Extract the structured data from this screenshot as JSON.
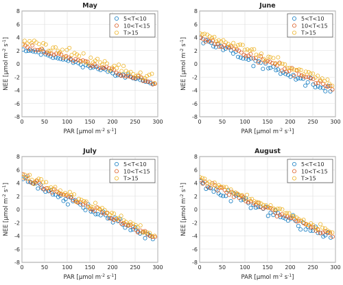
{
  "chart_data": [
    {
      "type": "scatter",
      "title": "May",
      "xlabel_prefix": "PAR [",
      "xlabel_mu": "μ",
      "xlabel_unit": "mol m",
      "xlabel_exp": "-2",
      "xlabel_s": " s",
      "xlabel_exp2": "-1",
      "xlabel_end": "]",
      "ylabel_prefix": "NEE [",
      "ylabel_mu": "μ",
      "ylabel_unit": "mol m",
      "ylabel_exp": "-2",
      "ylabel_s": " s",
      "ylabel_exp2": "-1",
      "ylabel_end": "]",
      "xlim": [
        0,
        300
      ],
      "ylim": [
        -8,
        8
      ],
      "xticks": [
        0,
        50,
        100,
        150,
        200,
        250,
        300
      ],
      "yticks": [
        -8,
        -6,
        -4,
        -2,
        0,
        2,
        4,
        6,
        8
      ],
      "grid": true,
      "legend_position": "top-right",
      "series": [
        {
          "name": "5<T<10",
          "color": "#0072BD",
          "a": 2.4,
          "b": -0.0185,
          "x0": 3,
          "dx": 5.5,
          "count": 53,
          "noise": 0.28,
          "seed": 11
        },
        {
          "name": "10<T<15",
          "color": "#D95319",
          "a": 2.9,
          "b": -0.0195,
          "x0": 2,
          "dx": 5.3,
          "count": 56,
          "noise": 0.33,
          "seed": 23
        },
        {
          "name": "T>15",
          "color": "#EDB120",
          "a": 3.7,
          "b": -0.0205,
          "x0": 1,
          "dx": 5.2,
          "count": 57,
          "noise": 0.55,
          "seed": 37
        }
      ]
    },
    {
      "type": "scatter",
      "title": "June",
      "xlabel_prefix": "PAR [",
      "xlabel_mu": "μ",
      "xlabel_unit": "mol m",
      "xlabel_exp": "-2",
      "xlabel_s": " s",
      "xlabel_exp2": "-1",
      "xlabel_end": "]",
      "ylabel_prefix": "NEE [",
      "ylabel_mu": "μ",
      "ylabel_unit": "mol m",
      "ylabel_exp": "-2",
      "ylabel_s": " s",
      "ylabel_exp2": "-1",
      "ylabel_end": "]",
      "xlim": [
        0,
        300
      ],
      "ylim": [
        -8,
        8
      ],
      "xticks": [
        0,
        50,
        100,
        150,
        200,
        250,
        300
      ],
      "yticks": [
        -8,
        -6,
        -4,
        -2,
        0,
        2,
        4,
        6,
        8
      ],
      "grid": true,
      "legend_position": "top-right",
      "series": [
        {
          "name": "5<T<10",
          "color": "#0072BD",
          "a": 3.6,
          "b": -0.0265,
          "x0": 3,
          "dx": 5.5,
          "count": 53,
          "noise": 0.45,
          "seed": 41
        },
        {
          "name": "10<T<15",
          "color": "#D95319",
          "a": 4.2,
          "b": -0.0265,
          "x0": 2,
          "dx": 5.3,
          "count": 56,
          "noise": 0.35,
          "seed": 53
        },
        {
          "name": "T>15",
          "color": "#EDB120",
          "a": 5.0,
          "b": -0.0275,
          "x0": 1,
          "dx": 5.2,
          "count": 57,
          "noise": 0.4,
          "seed": 67
        }
      ]
    },
    {
      "type": "scatter",
      "title": "July",
      "xlabel_prefix": "PAR [",
      "xlabel_mu": "μ",
      "xlabel_unit": "mol m",
      "xlabel_exp": "-2",
      "xlabel_s": " s",
      "xlabel_exp2": "-1",
      "xlabel_end": "]",
      "ylabel_prefix": "NEE [",
      "ylabel_mu": "μ",
      "ylabel_unit": "mol m",
      "ylabel_exp": "-2",
      "ylabel_s": " s",
      "ylabel_exp2": "-1",
      "ylabel_end": "]",
      "xlim": [
        0,
        300
      ],
      "ylim": [
        -8,
        8
      ],
      "xticks": [
        0,
        50,
        100,
        150,
        200,
        250,
        300
      ],
      "yticks": [
        -8,
        -6,
        -4,
        -2,
        0,
        2,
        4,
        6,
        8
      ],
      "grid": true,
      "legend_position": "top-right",
      "series": [
        {
          "name": "5<T<10",
          "color": "#0072BD",
          "a": 4.6,
          "b": -0.031,
          "x0": 3,
          "dx": 5.5,
          "count": 53,
          "noise": 0.5,
          "seed": 71
        },
        {
          "name": "10<T<15",
          "color": "#D95319",
          "a": 5.0,
          "b": -0.031,
          "x0": 2,
          "dx": 5.3,
          "count": 56,
          "noise": 0.35,
          "seed": 83
        },
        {
          "name": "T>15",
          "color": "#EDB120",
          "a": 5.6,
          "b": -0.0325,
          "x0": 1,
          "dx": 5.2,
          "count": 57,
          "noise": 0.4,
          "seed": 97
        }
      ]
    },
    {
      "type": "scatter",
      "title": "August",
      "xlabel_prefix": "PAR [",
      "xlabel_mu": "μ",
      "xlabel_unit": "mol m",
      "xlabel_exp": "-2",
      "xlabel_s": " s",
      "xlabel_exp2": "-1",
      "xlabel_end": "]",
      "ylabel_prefix": "NEE [",
      "ylabel_mu": "μ",
      "ylabel_unit": "mol m",
      "ylabel_exp": "-2",
      "ylabel_s": " s",
      "ylabel_exp2": "-1",
      "ylabel_end": "]",
      "xlim": [
        0,
        300
      ],
      "ylim": [
        -8,
        8
      ],
      "xticks": [
        0,
        50,
        100,
        150,
        200,
        250,
        300
      ],
      "yticks": [
        -8,
        -6,
        -4,
        -2,
        0,
        2,
        4,
        6,
        8
      ],
      "grid": true,
      "legend_position": "top-right",
      "series": [
        {
          "name": "5<T<10",
          "color": "#0072BD",
          "a": 4.0,
          "b": -0.028,
          "x0": 3,
          "dx": 5.5,
          "count": 53,
          "noise": 0.55,
          "seed": 101
        },
        {
          "name": "10<T<15",
          "color": "#D95319",
          "a": 4.4,
          "b": -0.0285,
          "x0": 2,
          "dx": 5.3,
          "count": 56,
          "noise": 0.35,
          "seed": 113
        },
        {
          "name": "T>15",
          "color": "#EDB120",
          "a": 4.9,
          "b": -0.029,
          "x0": 1,
          "dx": 5.2,
          "count": 57,
          "noise": 0.35,
          "seed": 127
        }
      ]
    }
  ]
}
